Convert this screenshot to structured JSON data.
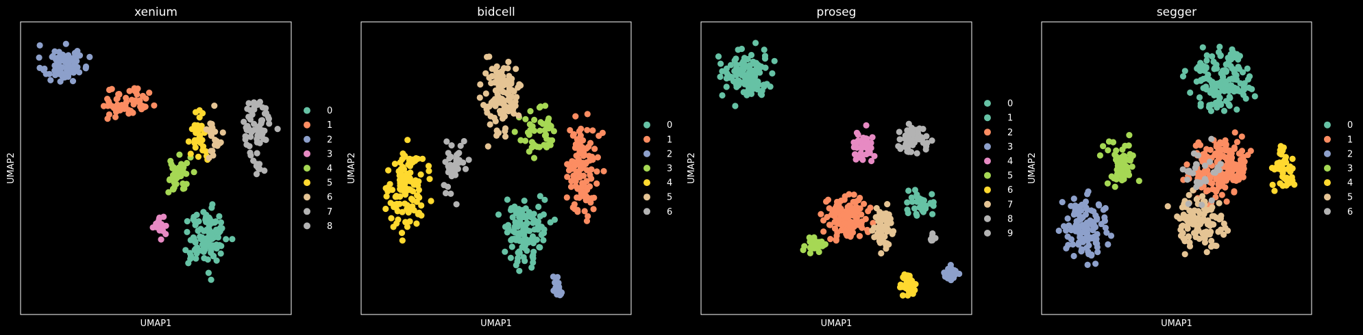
{
  "figure": {
    "background": "#000000"
  },
  "palette": [
    "#66c2a5",
    "#fc8d62",
    "#8da0cb",
    "#e78ac3",
    "#a6d854",
    "#ffd92f",
    "#e5c494",
    "#b3b3b3"
  ],
  "chart_data": [
    {
      "type": "scatter",
      "title": "xenium",
      "xlabel": "UMAP1",
      "ylabel": "UMAP2",
      "grid": false,
      "legend": "right",
      "categories": [
        "0",
        "1",
        "2",
        "3",
        "4",
        "5",
        "6",
        "7",
        "8"
      ],
      "colors": [
        "#66c2a5",
        "#fc8d62",
        "#8da0cb",
        "#e78ac3",
        "#a6d854",
        "#ffd92f",
        "#e5c494",
        "#b3b3b3",
        "#b3b3b3"
      ],
      "clusters": [
        {
          "label": "0",
          "cx": 0.68,
          "cy": 0.26,
          "rx": 0.13,
          "ry": 0.16,
          "n": 105
        },
        {
          "label": "1",
          "cx": 0.38,
          "cy": 0.72,
          "rx": 0.15,
          "ry": 0.09,
          "n": 55
        },
        {
          "label": "2",
          "cx": 0.16,
          "cy": 0.85,
          "rx": 0.13,
          "ry": 0.1,
          "n": 85
        },
        {
          "label": "3",
          "cx": 0.52,
          "cy": 0.3,
          "rx": 0.045,
          "ry": 0.08,
          "n": 22
        },
        {
          "label": "4",
          "cx": 0.58,
          "cy": 0.48,
          "rx": 0.1,
          "ry": 0.1,
          "n": 40
        },
        {
          "label": "5",
          "cx": 0.66,
          "cy": 0.62,
          "rx": 0.07,
          "ry": 0.15,
          "n": 30
        },
        {
          "label": "6",
          "cx": 0.71,
          "cy": 0.6,
          "rx": 0.055,
          "ry": 0.17,
          "n": 22
        },
        {
          "label": "7",
          "cx": 0.87,
          "cy": 0.64,
          "rx": 0.09,
          "ry": 0.17,
          "n": 60
        },
        {
          "label": "8",
          "cx": 0.88,
          "cy": 0.5,
          "rx": 0.04,
          "ry": 0.04,
          "n": 8
        }
      ]
    },
    {
      "type": "scatter",
      "title": "bidcell",
      "xlabel": "UMAP1",
      "ylabel": "UMAP2",
      "grid": false,
      "legend": "right",
      "categories": [
        "0",
        "1",
        "2",
        "3",
        "4",
        "5",
        "6"
      ],
      "colors": [
        "#66c2a5",
        "#fc8d62",
        "#8da0cb",
        "#a6d854",
        "#ffd92f",
        "#e5c494",
        "#b3b3b3"
      ],
      "clusters": [
        {
          "label": "0",
          "cx": 0.61,
          "cy": 0.28,
          "rx": 0.15,
          "ry": 0.23,
          "n": 110
        },
        {
          "label": "1",
          "cx": 0.82,
          "cy": 0.5,
          "rx": 0.1,
          "ry": 0.26,
          "n": 110
        },
        {
          "label": "2",
          "cx": 0.73,
          "cy": 0.1,
          "rx": 0.05,
          "ry": 0.07,
          "n": 15
        },
        {
          "label": "3",
          "cx": 0.66,
          "cy": 0.62,
          "rx": 0.12,
          "ry": 0.15,
          "n": 45
        },
        {
          "label": "4",
          "cx": 0.17,
          "cy": 0.42,
          "rx": 0.13,
          "ry": 0.25,
          "n": 110
        },
        {
          "label": "5",
          "cx": 0.52,
          "cy": 0.74,
          "rx": 0.11,
          "ry": 0.22,
          "n": 105
        },
        {
          "label": "6",
          "cx": 0.35,
          "cy": 0.52,
          "rx": 0.07,
          "ry": 0.17,
          "n": 40
        }
      ]
    },
    {
      "type": "scatter",
      "title": "proseg",
      "xlabel": "UMAP1",
      "ylabel": "UMAP2",
      "grid": false,
      "legend": "right",
      "categories": [
        "0",
        "1",
        "2",
        "3",
        "4",
        "5",
        "6",
        "7",
        "8",
        "9"
      ],
      "colors": [
        "#66c2a5",
        "#66c2a5",
        "#fc8d62",
        "#8da0cb",
        "#e78ac3",
        "#a6d854",
        "#ffd92f",
        "#e5c494",
        "#b3b3b3",
        "#b3b3b3"
      ],
      "clusters": [
        {
          "label": "0",
          "cx": 0.17,
          "cy": 0.82,
          "rx": 0.15,
          "ry": 0.13,
          "n": 120
        },
        {
          "label": "1",
          "cx": 0.81,
          "cy": 0.38,
          "rx": 0.08,
          "ry": 0.07,
          "n": 30
        },
        {
          "label": "2",
          "cx": 0.53,
          "cy": 0.33,
          "rx": 0.14,
          "ry": 0.12,
          "n": 120
        },
        {
          "label": "3",
          "cx": 0.92,
          "cy": 0.14,
          "rx": 0.045,
          "ry": 0.04,
          "n": 25
        },
        {
          "label": "4",
          "cx": 0.6,
          "cy": 0.57,
          "rx": 0.07,
          "ry": 0.1,
          "n": 40
        },
        {
          "label": "5",
          "cx": 0.42,
          "cy": 0.24,
          "rx": 0.065,
          "ry": 0.05,
          "n": 35
        },
        {
          "label": "6",
          "cx": 0.76,
          "cy": 0.1,
          "rx": 0.055,
          "ry": 0.06,
          "n": 40
        },
        {
          "label": "7",
          "cx": 0.67,
          "cy": 0.3,
          "rx": 0.06,
          "ry": 0.12,
          "n": 70
        },
        {
          "label": "8",
          "cx": 0.78,
          "cy": 0.6,
          "rx": 0.1,
          "ry": 0.08,
          "n": 55
        },
        {
          "label": "9",
          "cx": 0.86,
          "cy": 0.26,
          "rx": 0.02,
          "ry": 0.03,
          "n": 6
        }
      ]
    },
    {
      "type": "scatter",
      "title": "segger",
      "xlabel": "UMAP1",
      "ylabel": "UMAP2",
      "grid": false,
      "legend": "right",
      "categories": [
        "0",
        "1",
        "2",
        "3",
        "4",
        "5",
        "6"
      ],
      "colors": [
        "#66c2a5",
        "#fc8d62",
        "#8da0cb",
        "#a6d854",
        "#ffd92f",
        "#e5c494",
        "#b3b3b3"
      ],
      "clusters": [
        {
          "label": "0",
          "cx": 0.67,
          "cy": 0.8,
          "rx": 0.19,
          "ry": 0.17,
          "n": 150
        },
        {
          "label": "1",
          "cx": 0.65,
          "cy": 0.5,
          "rx": 0.19,
          "ry": 0.17,
          "n": 160
        },
        {
          "label": "2",
          "cx": 0.16,
          "cy": 0.3,
          "rx": 0.13,
          "ry": 0.2,
          "n": 110
        },
        {
          "label": "3",
          "cx": 0.3,
          "cy": 0.52,
          "rx": 0.1,
          "ry": 0.14,
          "n": 60
        },
        {
          "label": "4",
          "cx": 0.9,
          "cy": 0.5,
          "rx": 0.07,
          "ry": 0.12,
          "n": 50
        },
        {
          "label": "5",
          "cx": 0.58,
          "cy": 0.31,
          "rx": 0.17,
          "ry": 0.16,
          "n": 110
        },
        {
          "label": "6",
          "cx": 0.6,
          "cy": 0.48,
          "rx": 0.13,
          "ry": 0.15,
          "n": 30
        }
      ]
    }
  ]
}
